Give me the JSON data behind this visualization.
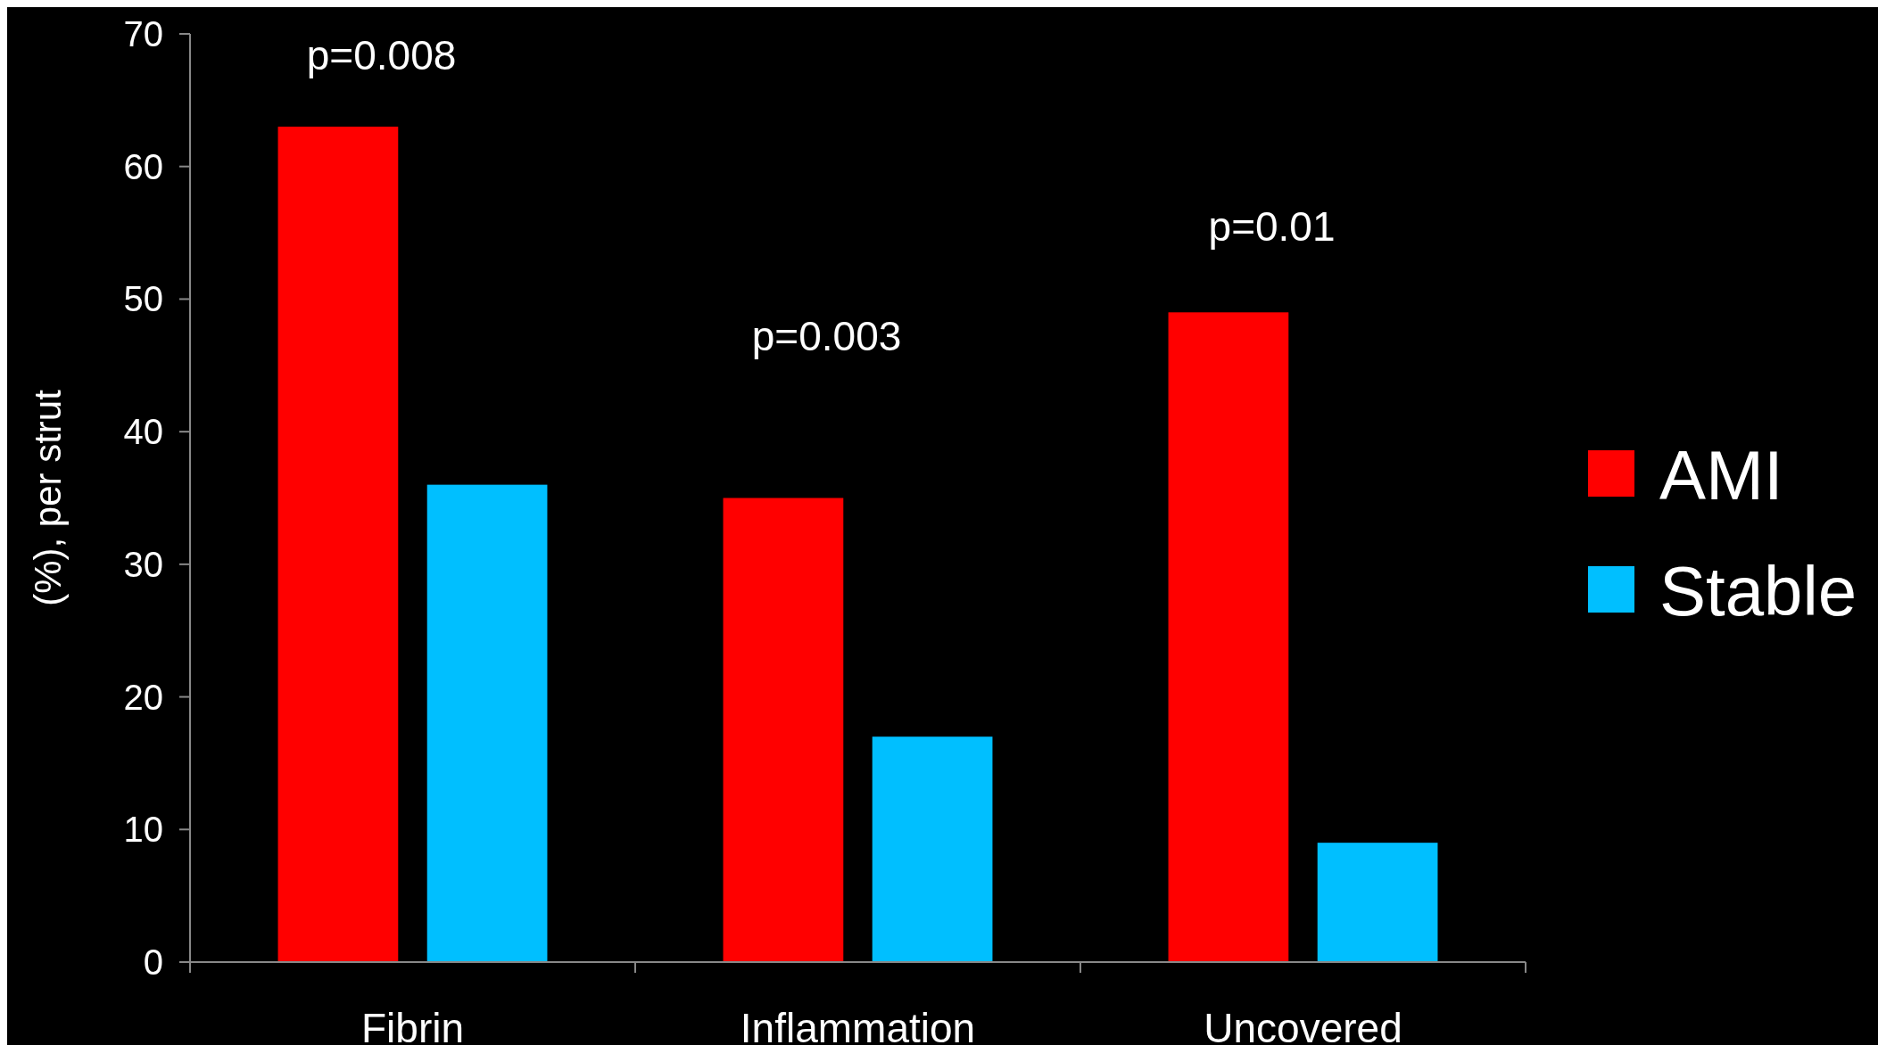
{
  "chart_data": {
    "type": "bar",
    "ylabel": "(%), per strut",
    "categories": [
      "Fibrin",
      "Inflammation",
      "Uncovered"
    ],
    "series": [
      {
        "name": "AMI",
        "color": "#ff0000",
        "values": [
          63,
          35,
          49
        ]
      },
      {
        "name": "Stable",
        "color": "#00bfff",
        "values": [
          36,
          17,
          9
        ]
      }
    ],
    "ylim": [
      0,
      70
    ],
    "yticks": [
      0,
      10,
      20,
      30,
      40,
      50,
      60,
      70
    ],
    "grid": false,
    "legend": "right",
    "annotations": [
      "p=0.008",
      "p=0.003",
      "p=0.01"
    ]
  }
}
